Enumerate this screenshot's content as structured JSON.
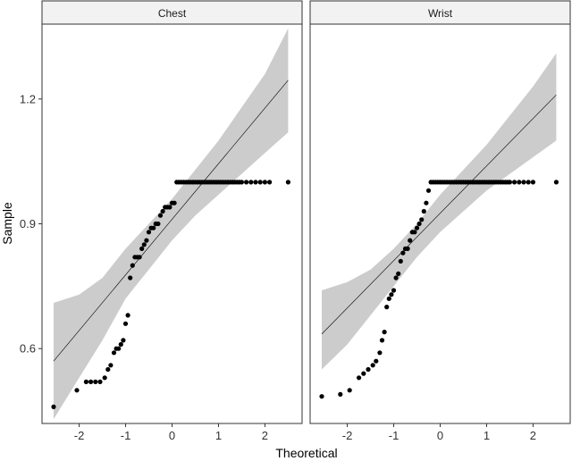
{
  "chart_data": {
    "type": "scatter",
    "subtype": "qq-plot facets",
    "xlabel": "Theoretical",
    "ylabel": "Sample",
    "xlim": [
      -2.8,
      2.8
    ],
    "ylim": [
      0.42,
      1.38
    ],
    "x_ticks": [
      -2,
      -1,
      0,
      1,
      2
    ],
    "x_tick_labels": [
      "-2",
      "-1",
      "0",
      "1",
      "2"
    ],
    "y_ticks": [
      0.6,
      0.9,
      1.2
    ],
    "y_tick_labels": [
      "0.6",
      "0.9",
      "1.2"
    ],
    "grid": false,
    "colors": {
      "points": "#000000",
      "band": "#cccccc",
      "line": "#000000",
      "strip_fill": "#f2f2f2",
      "frame": "#333333"
    },
    "facets": [
      {
        "name": "Chest",
        "line": {
          "x": [
            -2.55,
            2.5
          ],
          "y": [
            0.57,
            1.245
          ]
        },
        "band": {
          "x": [
            -2.55,
            -2.0,
            -1.5,
            -1.0,
            -0.5,
            0.0,
            0.5,
            1.0,
            1.5,
            2.0,
            2.5
          ],
          "lower": [
            0.43,
            0.53,
            0.62,
            0.72,
            0.79,
            0.86,
            0.92,
            0.97,
            1.02,
            1.07,
            1.12
          ],
          "upper": [
            0.71,
            0.73,
            0.77,
            0.84,
            0.9,
            0.96,
            1.03,
            1.1,
            1.18,
            1.26,
            1.37
          ]
        },
        "points": [
          [
            -2.55,
            0.46
          ],
          [
            -2.05,
            0.5
          ],
          [
            -1.85,
            0.52
          ],
          [
            -1.75,
            0.52
          ],
          [
            -1.65,
            0.52
          ],
          [
            -1.55,
            0.52
          ],
          [
            -1.45,
            0.53
          ],
          [
            -1.38,
            0.55
          ],
          [
            -1.32,
            0.56
          ],
          [
            -1.25,
            0.59
          ],
          [
            -1.2,
            0.6
          ],
          [
            -1.15,
            0.6
          ],
          [
            -1.1,
            0.61
          ],
          [
            -1.05,
            0.62
          ],
          [
            -1.0,
            0.66
          ],
          [
            -0.95,
            0.68
          ],
          [
            -0.9,
            0.77
          ],
          [
            -0.85,
            0.8
          ],
          [
            -0.8,
            0.82
          ],
          [
            -0.75,
            0.82
          ],
          [
            -0.7,
            0.82
          ],
          [
            -0.65,
            0.84
          ],
          [
            -0.6,
            0.85
          ],
          [
            -0.55,
            0.86
          ],
          [
            -0.5,
            0.88
          ],
          [
            -0.45,
            0.89
          ],
          [
            -0.4,
            0.89
          ],
          [
            -0.35,
            0.9
          ],
          [
            -0.3,
            0.9
          ],
          [
            -0.25,
            0.92
          ],
          [
            -0.2,
            0.93
          ],
          [
            -0.15,
            0.94
          ],
          [
            -0.1,
            0.94
          ],
          [
            -0.05,
            0.94
          ],
          [
            0.0,
            0.95
          ],
          [
            0.05,
            0.95
          ],
          [
            0.1,
            1.0
          ],
          [
            0.15,
            1.0
          ],
          [
            0.2,
            1.0
          ],
          [
            0.25,
            1.0
          ],
          [
            0.3,
            1.0
          ],
          [
            0.35,
            1.0
          ],
          [
            0.4,
            1.0
          ],
          [
            0.45,
            1.0
          ],
          [
            0.5,
            1.0
          ],
          [
            0.55,
            1.0
          ],
          [
            0.6,
            1.0
          ],
          [
            0.65,
            1.0
          ],
          [
            0.7,
            1.0
          ],
          [
            0.75,
            1.0
          ],
          [
            0.8,
            1.0
          ],
          [
            0.85,
            1.0
          ],
          [
            0.9,
            1.0
          ],
          [
            0.95,
            1.0
          ],
          [
            1.0,
            1.0
          ],
          [
            1.05,
            1.0
          ],
          [
            1.1,
            1.0
          ],
          [
            1.15,
            1.0
          ],
          [
            1.2,
            1.0
          ],
          [
            1.25,
            1.0
          ],
          [
            1.3,
            1.0
          ],
          [
            1.35,
            1.0
          ],
          [
            1.4,
            1.0
          ],
          [
            1.45,
            1.0
          ],
          [
            1.5,
            1.0
          ],
          [
            1.6,
            1.0
          ],
          [
            1.7,
            1.0
          ],
          [
            1.8,
            1.0
          ],
          [
            1.9,
            1.0
          ],
          [
            2.0,
            1.0
          ],
          [
            2.1,
            1.0
          ],
          [
            2.5,
            1.0
          ]
        ]
      },
      {
        "name": "Wrist",
        "line": {
          "x": [
            -2.55,
            2.5
          ],
          "y": [
            0.635,
            1.21
          ]
        },
        "band": {
          "x": [
            -2.55,
            -2.0,
            -1.5,
            -1.0,
            -0.5,
            0.0,
            0.5,
            1.0,
            1.5,
            2.0,
            2.5
          ],
          "lower": [
            0.55,
            0.61,
            0.68,
            0.75,
            0.82,
            0.88,
            0.93,
            0.98,
            1.02,
            1.06,
            1.1
          ],
          "upper": [
            0.74,
            0.76,
            0.79,
            0.84,
            0.9,
            0.97,
            1.03,
            1.09,
            1.16,
            1.23,
            1.31
          ]
        },
        "points": [
          [
            -2.55,
            0.485
          ],
          [
            -2.15,
            0.49
          ],
          [
            -1.95,
            0.5
          ],
          [
            -1.75,
            0.53
          ],
          [
            -1.65,
            0.54
          ],
          [
            -1.55,
            0.55
          ],
          [
            -1.45,
            0.56
          ],
          [
            -1.38,
            0.57
          ],
          [
            -1.3,
            0.59
          ],
          [
            -1.25,
            0.62
          ],
          [
            -1.2,
            0.64
          ],
          [
            -1.15,
            0.7
          ],
          [
            -1.1,
            0.72
          ],
          [
            -1.05,
            0.73
          ],
          [
            -1.0,
            0.74
          ],
          [
            -0.95,
            0.77
          ],
          [
            -0.9,
            0.78
          ],
          [
            -0.85,
            0.81
          ],
          [
            -0.8,
            0.83
          ],
          [
            -0.75,
            0.84
          ],
          [
            -0.7,
            0.84
          ],
          [
            -0.65,
            0.86
          ],
          [
            -0.6,
            0.88
          ],
          [
            -0.55,
            0.88
          ],
          [
            -0.5,
            0.89
          ],
          [
            -0.45,
            0.9
          ],
          [
            -0.4,
            0.91
          ],
          [
            -0.35,
            0.93
          ],
          [
            -0.3,
            0.95
          ],
          [
            -0.25,
            0.98
          ],
          [
            -0.2,
            1.0
          ],
          [
            -0.15,
            1.0
          ],
          [
            -0.1,
            1.0
          ],
          [
            -0.05,
            1.0
          ],
          [
            0.0,
            1.0
          ],
          [
            0.05,
            1.0
          ],
          [
            0.1,
            1.0
          ],
          [
            0.15,
            1.0
          ],
          [
            0.2,
            1.0
          ],
          [
            0.25,
            1.0
          ],
          [
            0.3,
            1.0
          ],
          [
            0.35,
            1.0
          ],
          [
            0.4,
            1.0
          ],
          [
            0.45,
            1.0
          ],
          [
            0.5,
            1.0
          ],
          [
            0.55,
            1.0
          ],
          [
            0.6,
            1.0
          ],
          [
            0.65,
            1.0
          ],
          [
            0.7,
            1.0
          ],
          [
            0.75,
            1.0
          ],
          [
            0.8,
            1.0
          ],
          [
            0.85,
            1.0
          ],
          [
            0.9,
            1.0
          ],
          [
            0.95,
            1.0
          ],
          [
            1.0,
            1.0
          ],
          [
            1.05,
            1.0
          ],
          [
            1.1,
            1.0
          ],
          [
            1.15,
            1.0
          ],
          [
            1.2,
            1.0
          ],
          [
            1.25,
            1.0
          ],
          [
            1.3,
            1.0
          ],
          [
            1.35,
            1.0
          ],
          [
            1.4,
            1.0
          ],
          [
            1.45,
            1.0
          ],
          [
            1.5,
            1.0
          ],
          [
            1.6,
            1.0
          ],
          [
            1.7,
            1.0
          ],
          [
            1.8,
            1.0
          ],
          [
            1.9,
            1.0
          ],
          [
            2.0,
            1.0
          ],
          [
            2.5,
            1.0
          ]
        ]
      }
    ]
  }
}
